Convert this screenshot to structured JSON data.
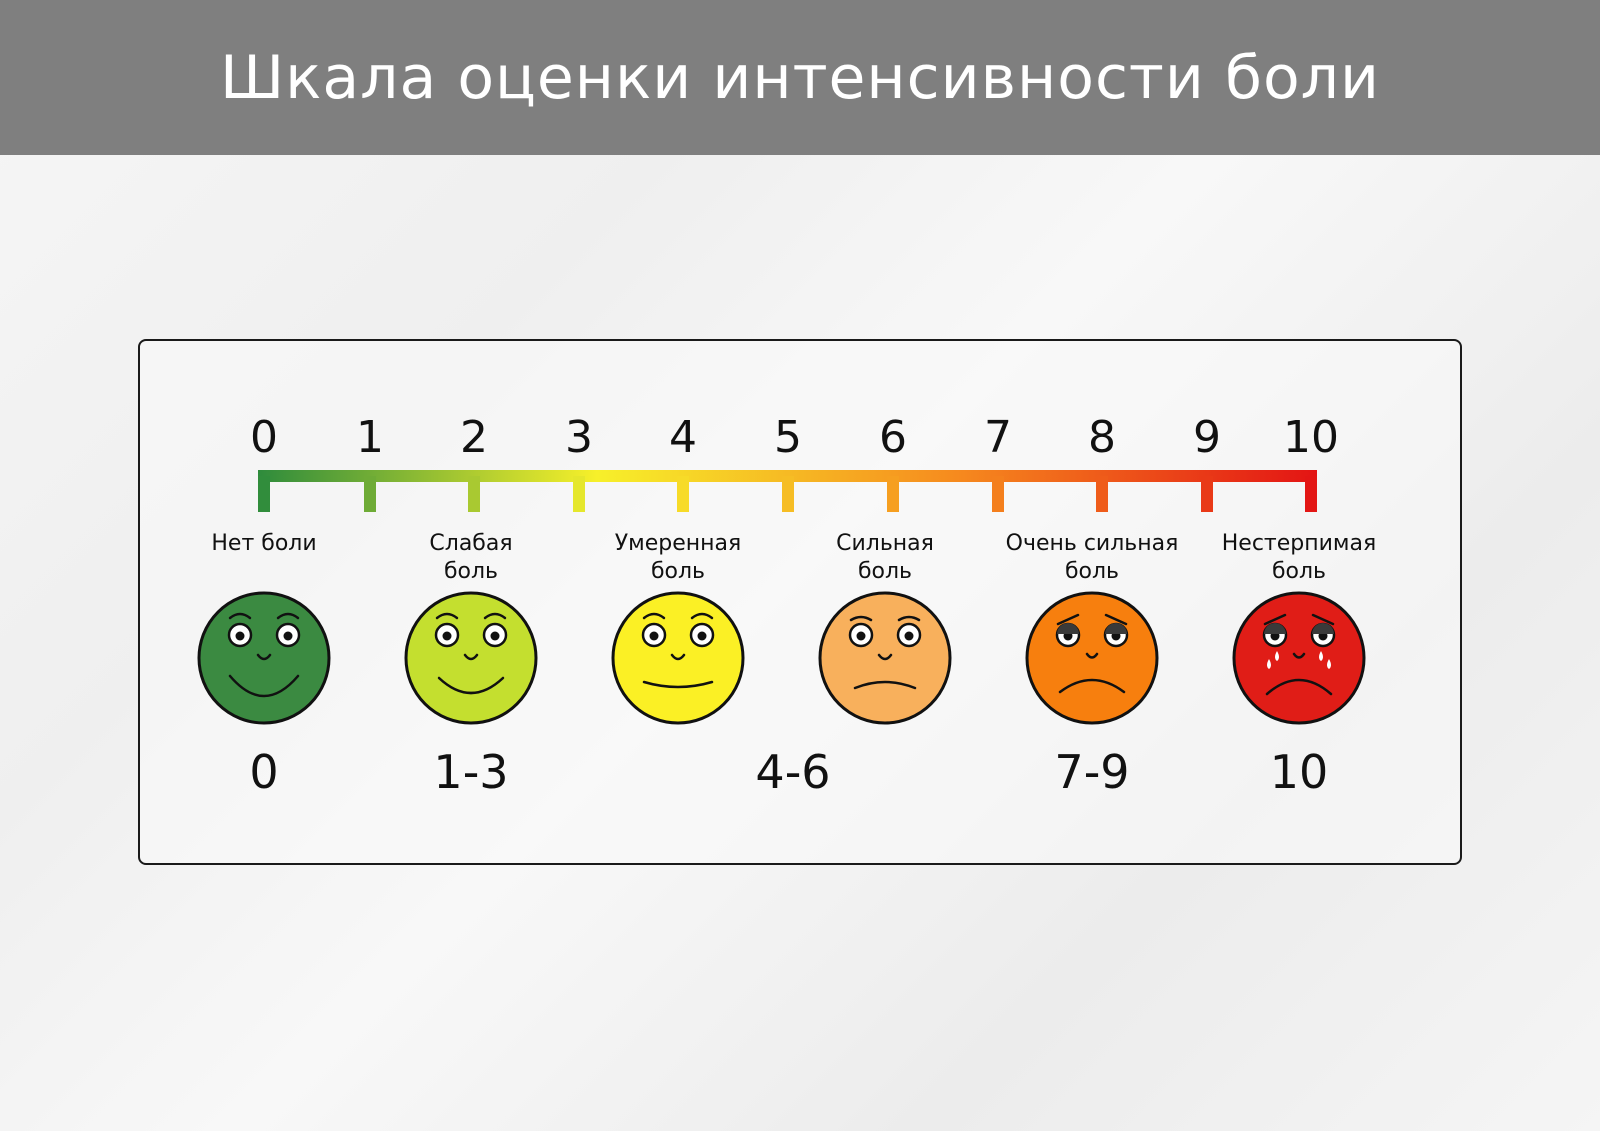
{
  "title": "Шкала оценки интенсивности боли",
  "scale": {
    "numbers": [
      "0",
      "1",
      "2",
      "3",
      "4",
      "5",
      "6",
      "7",
      "8",
      "9",
      "10"
    ],
    "gradient": [
      "#2e8b3c",
      "#f7f02a",
      "#f68a1e",
      "#e31414"
    ]
  },
  "levels": [
    {
      "label": [
        "Нет боли"
      ],
      "range": "0",
      "color": "#3b8a41",
      "mood": "very-happy"
    },
    {
      "label": [
        "Слабая",
        "боль"
      ],
      "range": "1-3",
      "color": "#c4df2f",
      "mood": "happy"
    },
    {
      "label": [
        "Умеренная",
        "боль"
      ],
      "range": "",
      "color": "#fbf025",
      "mood": "neutral-smile"
    },
    {
      "label": [
        "Сильная",
        "боль"
      ],
      "range": "",
      "color": "#f8b05c",
      "mood": "sad"
    },
    {
      "label": [
        "Очень сильная",
        "боль"
      ],
      "range": "7-9",
      "color": "#f77f0e",
      "mood": "very-sad"
    },
    {
      "label": [
        "Нестерпимая",
        "боль"
      ],
      "range": "10",
      "color": "#e01d17",
      "mood": "crying"
    }
  ],
  "shared_range": "4-6"
}
